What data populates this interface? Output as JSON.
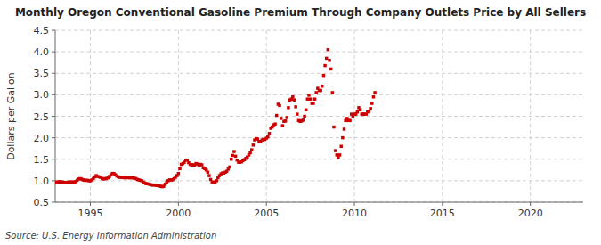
{
  "chart_data": {
    "type": "scatter",
    "title": "Monthly Oregon Conventional Gasoline Premium Through Company Outlets Price by All Sellers",
    "ylabel": "Dollars per Gallon",
    "source": "Source: U.S. Energy Information Administration",
    "color": "#cc0000",
    "marker": "square",
    "grid": true,
    "xlim": [
      1993.0,
      2023.0
    ],
    "ylim": [
      0.5,
      4.5
    ],
    "xticks": [
      1995,
      2000,
      2005,
      2010,
      2015,
      2020
    ],
    "yticks": [
      0.5,
      {
        "value": 1.0,
        "label": "1.0"
      },
      1.5,
      {
        "value": 2.0,
        "label": "2.0"
      },
      2.5,
      {
        "value": 3.0,
        "label": "3.0"
      },
      3.5,
      {
        "value": 4.0,
        "label": "4.0"
      },
      4.5
    ],
    "x": [
      1993.0,
      1993.083,
      1993.167,
      1993.25,
      1993.333,
      1993.417,
      1993.5,
      1993.583,
      1993.667,
      1993.75,
      1993.833,
      1993.917,
      1994.0,
      1994.083,
      1994.167,
      1994.25,
      1994.333,
      1994.417,
      1994.5,
      1994.583,
      1994.667,
      1994.75,
      1994.833,
      1994.917,
      1995.0,
      1995.083,
      1995.167,
      1995.25,
      1995.333,
      1995.417,
      1995.5,
      1995.583,
      1995.667,
      1995.75,
      1995.833,
      1995.917,
      1996.0,
      1996.083,
      1996.167,
      1996.25,
      1996.333,
      1996.417,
      1996.5,
      1996.583,
      1996.667,
      1996.75,
      1996.833,
      1996.917,
      1997.0,
      1997.083,
      1997.167,
      1997.25,
      1997.333,
      1997.417,
      1997.5,
      1997.583,
      1997.667,
      1997.75,
      1997.833,
      1997.917,
      1998.0,
      1998.083,
      1998.167,
      1998.25,
      1998.333,
      1998.417,
      1998.5,
      1998.583,
      1998.667,
      1998.75,
      1998.833,
      1998.917,
      1999.0,
      1999.083,
      1999.167,
      1999.25,
      1999.333,
      1999.417,
      1999.5,
      1999.583,
      1999.667,
      1999.75,
      1999.833,
      1999.917,
      2000.0,
      2000.083,
      2000.167,
      2000.25,
      2000.333,
      2000.417,
      2000.5,
      2000.583,
      2000.667,
      2000.75,
      2000.833,
      2000.917,
      2001.0,
      2001.083,
      2001.167,
      2001.25,
      2001.333,
      2001.417,
      2001.5,
      2001.583,
      2001.667,
      2001.75,
      2001.833,
      2001.917,
      2002.0,
      2002.083,
      2002.167,
      2002.25,
      2002.333,
      2002.417,
      2002.5,
      2002.583,
      2002.667,
      2002.75,
      2002.833,
      2002.917,
      2003.0,
      2003.083,
      2003.167,
      2003.25,
      2003.333,
      2003.417,
      2003.5,
      2003.583,
      2003.667,
      2003.75,
      2003.833,
      2003.917,
      2004.0,
      2004.083,
      2004.167,
      2004.25,
      2004.333,
      2004.417,
      2004.5,
      2004.583,
      2004.667,
      2004.75,
      2004.833,
      2004.917,
      2005.0,
      2005.083,
      2005.167,
      2005.25,
      2005.333,
      2005.417,
      2005.5,
      2005.583,
      2005.667,
      2005.75,
      2005.833,
      2005.917,
      2006.0,
      2006.083,
      2006.167,
      2006.25,
      2006.333,
      2006.417,
      2006.5,
      2006.583,
      2006.667,
      2006.75,
      2006.833,
      2006.917,
      2007.0,
      2007.083,
      2007.167,
      2007.25,
      2007.333,
      2007.417,
      2007.5,
      2007.583,
      2007.667,
      2007.75,
      2007.833,
      2007.917,
      2008.0,
      2008.083,
      2008.167,
      2008.25,
      2008.333,
      2008.417,
      2008.5,
      2008.583,
      2008.667,
      2008.75,
      2008.833,
      2008.917,
      2009.0,
      2009.083,
      2009.167,
      2009.25,
      2009.333,
      2009.417,
      2009.5,
      2009.583,
      2009.667,
      2009.75,
      2009.833,
      2009.917,
      2010.0,
      2010.083,
      2010.167,
      2010.25,
      2010.333,
      2010.417,
      2010.5,
      2010.583,
      2010.667,
      2010.75,
      2010.833,
      2010.917,
      2011.0,
      2011.083,
      2011.167
    ],
    "values": [
      0.96,
      0.97,
      0.97,
      0.98,
      0.97,
      0.97,
      0.96,
      0.96,
      0.96,
      0.97,
      0.97,
      0.97,
      0.97,
      0.97,
      0.98,
      1.01,
      1.04,
      1.05,
      1.04,
      1.02,
      1.01,
      1.01,
      1.01,
      1.0,
      1.0,
      1.02,
      1.05,
      1.09,
      1.12,
      1.1,
      1.09,
      1.08,
      1.05,
      1.04,
      1.05,
      1.05,
      1.07,
      1.1,
      1.14,
      1.17,
      1.17,
      1.14,
      1.11,
      1.09,
      1.08,
      1.08,
      1.08,
      1.07,
      1.07,
      1.08,
      1.07,
      1.07,
      1.07,
      1.07,
      1.06,
      1.05,
      1.03,
      1.02,
      1.01,
      1.0,
      0.97,
      0.95,
      0.93,
      0.93,
      0.92,
      0.91,
      0.9,
      0.9,
      0.9,
      0.89,
      0.89,
      0.88,
      0.87,
      0.86,
      0.87,
      0.92,
      0.97,
      1.0,
      1.02,
      1.02,
      1.02,
      1.05,
      1.08,
      1.12,
      1.17,
      1.28,
      1.38,
      1.4,
      1.43,
      1.48,
      1.48,
      1.42,
      1.38,
      1.37,
      1.37,
      1.36,
      1.4,
      1.39,
      1.36,
      1.38,
      1.37,
      1.3,
      1.28,
      1.25,
      1.2,
      1.12,
      1.03,
      0.97,
      0.96,
      0.97,
      1.0,
      1.07,
      1.12,
      1.16,
      1.18,
      1.18,
      1.2,
      1.22,
      1.27,
      1.32,
      1.5,
      1.59,
      1.68,
      1.57,
      1.48,
      1.43,
      1.43,
      1.44,
      1.47,
      1.49,
      1.52,
      1.55,
      1.6,
      1.65,
      1.72,
      1.83,
      1.95,
      1.98,
      1.97,
      1.91,
      1.91,
      1.95,
      1.96,
      1.96,
      1.99,
      2.02,
      2.1,
      2.22,
      2.25,
      2.3,
      2.32,
      2.52,
      2.78,
      2.75,
      2.45,
      2.28,
      2.38,
      2.39,
      2.47,
      2.7,
      2.88,
      2.9,
      2.95,
      2.88,
      2.72,
      2.55,
      2.4,
      2.38,
      2.39,
      2.41,
      2.5,
      2.65,
      2.9,
      2.99,
      2.9,
      2.8,
      2.8,
      2.9,
      3.05,
      3.15,
      3.1,
      3.1,
      3.2,
      3.45,
      3.68,
      3.85,
      4.05,
      3.8,
      3.6,
      3.05,
      2.25,
      1.7,
      1.6,
      1.55,
      1.6,
      1.8,
      2.0,
      2.2,
      2.4,
      2.45,
      2.4,
      2.4,
      2.55,
      2.5,
      2.55,
      2.55,
      2.6,
      2.7,
      2.65,
      2.55,
      2.55,
      2.55,
      2.55,
      2.6,
      2.62,
      2.68,
      2.8,
      2.95,
      3.05
    ]
  }
}
